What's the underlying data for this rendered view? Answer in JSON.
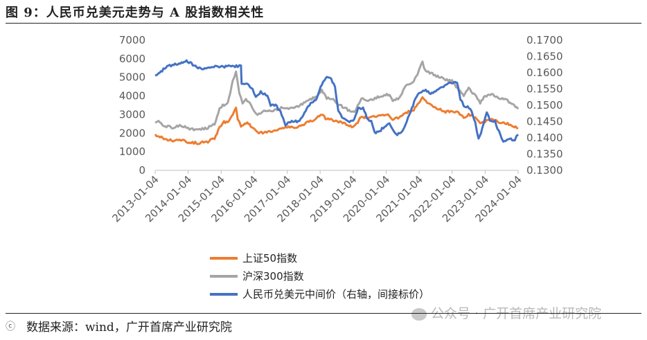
{
  "title": "图 9：人民币兑美元走势与 A 股指数相关性",
  "source": "数据来源：wind，广开首席产业研究院",
  "source_icon": "ⓒ",
  "watermark": "公众号 · 广开首席产业研究院",
  "chart_data": {
    "type": "line",
    "x_tick_labels": [
      "2013-01-04",
      "2014-01-04",
      "2015-01-04",
      "2016-01-04",
      "2017-01-04",
      "2018-01-04",
      "2019-01-04",
      "2020-01-04",
      "2021-01-04",
      "2022-01-04",
      "2023-01-04",
      "2024-01-04"
    ],
    "y_left": {
      "ticks": [
        0,
        1000,
        2000,
        3000,
        4000,
        5000,
        6000,
        7000
      ],
      "range": [
        0,
        7000
      ]
    },
    "y_right": {
      "ticks": [
        "0.1300",
        "0.1350",
        "0.1400",
        "0.1450",
        "0.1500",
        "0.1550",
        "0.1600",
        "0.1650",
        "0.1700"
      ],
      "range": [
        0.13,
        0.17
      ]
    },
    "x_range": [
      2013.0,
      2024.0
    ],
    "series": [
      {
        "name": "上证50指数",
        "axis": "left",
        "color": "#ED7D31",
        "points": [
          [
            2013.0,
            1900
          ],
          [
            2013.15,
            1780
          ],
          [
            2013.3,
            1700
          ],
          [
            2013.5,
            1600
          ],
          [
            2013.7,
            1650
          ],
          [
            2013.9,
            1580
          ],
          [
            2014.0,
            1520
          ],
          [
            2014.3,
            1470
          ],
          [
            2014.6,
            1550
          ],
          [
            2014.8,
            1700
          ],
          [
            2014.95,
            2300
          ],
          [
            2015.05,
            2600
          ],
          [
            2015.2,
            2600
          ],
          [
            2015.35,
            3000
          ],
          [
            2015.45,
            3350
          ],
          [
            2015.5,
            2800
          ],
          [
            2015.6,
            2400
          ],
          [
            2015.75,
            2550
          ],
          [
            2015.9,
            2400
          ],
          [
            2016.0,
            2200
          ],
          [
            2016.1,
            2000
          ],
          [
            2016.3,
            2050
          ],
          [
            2016.5,
            2100
          ],
          [
            2016.7,
            2200
          ],
          [
            2016.9,
            2250
          ],
          [
            2017.0,
            2300
          ],
          [
            2017.3,
            2350
          ],
          [
            2017.5,
            2450
          ],
          [
            2017.7,
            2650
          ],
          [
            2017.9,
            2800
          ],
          [
            2018.05,
            3000
          ],
          [
            2018.2,
            2750
          ],
          [
            2018.4,
            2700
          ],
          [
            2018.6,
            2600
          ],
          [
            2018.8,
            2450
          ],
          [
            2019.0,
            2350
          ],
          [
            2019.1,
            2500
          ],
          [
            2019.25,
            2900
          ],
          [
            2019.5,
            2800
          ],
          [
            2019.7,
            2900
          ],
          [
            2019.9,
            3000
          ],
          [
            2020.1,
            2950
          ],
          [
            2020.2,
            2700
          ],
          [
            2020.4,
            2850
          ],
          [
            2020.6,
            3100
          ],
          [
            2020.8,
            3200
          ],
          [
            2020.95,
            3500
          ],
          [
            2021.1,
            3950
          ],
          [
            2021.2,
            3700
          ],
          [
            2021.4,
            3500
          ],
          [
            2021.6,
            3300
          ],
          [
            2021.8,
            3150
          ],
          [
            2022.0,
            3200
          ],
          [
            2022.2,
            3100
          ],
          [
            2022.35,
            2850
          ],
          [
            2022.5,
            3000
          ],
          [
            2022.7,
            2850
          ],
          [
            2022.85,
            2500
          ],
          [
            2023.0,
            2650
          ],
          [
            2023.2,
            2750
          ],
          [
            2023.4,
            2600
          ],
          [
            2023.6,
            2550
          ],
          [
            2023.8,
            2450
          ],
          [
            2024.0,
            2250
          ]
        ]
      },
      {
        "name": "沪深300指数",
        "axis": "left",
        "color": "#A5A5A5",
        "points": [
          [
            2013.0,
            2500
          ],
          [
            2013.1,
            2600
          ],
          [
            2013.3,
            2400
          ],
          [
            2013.5,
            2300
          ],
          [
            2013.7,
            2400
          ],
          [
            2013.9,
            2350
          ],
          [
            2014.0,
            2250
          ],
          [
            2014.3,
            2150
          ],
          [
            2014.6,
            2300
          ],
          [
            2014.8,
            2500
          ],
          [
            2014.95,
            3300
          ],
          [
            2015.05,
            3500
          ],
          [
            2015.2,
            3600
          ],
          [
            2015.35,
            4800
          ],
          [
            2015.45,
            5300
          ],
          [
            2015.55,
            4200
          ],
          [
            2015.65,
            3600
          ],
          [
            2015.75,
            3800
          ],
          [
            2015.9,
            3600
          ],
          [
            2016.0,
            3200
          ],
          [
            2016.1,
            3000
          ],
          [
            2016.3,
            3200
          ],
          [
            2016.5,
            3200
          ],
          [
            2016.7,
            3300
          ],
          [
            2016.9,
            3400
          ],
          [
            2017.0,
            3350
          ],
          [
            2017.3,
            3400
          ],
          [
            2017.5,
            3600
          ],
          [
            2017.7,
            3800
          ],
          [
            2017.9,
            4000
          ],
          [
            2018.05,
            4300
          ],
          [
            2018.2,
            3900
          ],
          [
            2018.4,
            3800
          ],
          [
            2018.6,
            3500
          ],
          [
            2018.8,
            3300
          ],
          [
            2019.0,
            3100
          ],
          [
            2019.1,
            3300
          ],
          [
            2019.25,
            3900
          ],
          [
            2019.5,
            3750
          ],
          [
            2019.7,
            3900
          ],
          [
            2019.9,
            4000
          ],
          [
            2020.1,
            4100
          ],
          [
            2020.2,
            3700
          ],
          [
            2020.4,
            3900
          ],
          [
            2020.6,
            4600
          ],
          [
            2020.8,
            4700
          ],
          [
            2020.95,
            5200
          ],
          [
            2021.1,
            5800
          ],
          [
            2021.2,
            5300
          ],
          [
            2021.4,
            5200
          ],
          [
            2021.6,
            5000
          ],
          [
            2021.8,
            4900
          ],
          [
            2022.0,
            4800
          ],
          [
            2022.2,
            4300
          ],
          [
            2022.35,
            4000
          ],
          [
            2022.5,
            4400
          ],
          [
            2022.7,
            4000
          ],
          [
            2022.85,
            3600
          ],
          [
            2023.0,
            4000
          ],
          [
            2023.2,
            4100
          ],
          [
            2023.4,
            3900
          ],
          [
            2023.6,
            3850
          ],
          [
            2023.8,
            3600
          ],
          [
            2024.0,
            3300
          ]
        ]
      },
      {
        "name": "人民币兑美元中间价（右轴，间接标价）",
        "axis": "right",
        "color": "#4472C4",
        "points": [
          [
            2013.0,
            0.159
          ],
          [
            2013.1,
            0.1595
          ],
          [
            2013.25,
            0.161
          ],
          [
            2013.4,
            0.162
          ],
          [
            2013.6,
            0.1625
          ],
          [
            2013.8,
            0.163
          ],
          [
            2013.95,
            0.1635
          ],
          [
            2014.1,
            0.1628
          ],
          [
            2014.3,
            0.1615
          ],
          [
            2014.5,
            0.1613
          ],
          [
            2014.7,
            0.1618
          ],
          [
            2014.9,
            0.162
          ],
          [
            2015.1,
            0.1618
          ],
          [
            2015.3,
            0.162
          ],
          [
            2015.5,
            0.162
          ],
          [
            2015.6,
            0.162
          ],
          [
            2015.62,
            0.1568
          ],
          [
            2015.8,
            0.1565
          ],
          [
            2015.95,
            0.155
          ],
          [
            2016.05,
            0.1525
          ],
          [
            2016.2,
            0.154
          ],
          [
            2016.4,
            0.153
          ],
          [
            2016.5,
            0.15
          ],
          [
            2016.65,
            0.15
          ],
          [
            2016.8,
            0.148
          ],
          [
            2016.95,
            0.144
          ],
          [
            2017.1,
            0.145
          ],
          [
            2017.3,
            0.145
          ],
          [
            2017.45,
            0.146
          ],
          [
            2017.6,
            0.149
          ],
          [
            2017.75,
            0.151
          ],
          [
            2017.9,
            0.152
          ],
          [
            2018.05,
            0.1565
          ],
          [
            2018.2,
            0.159
          ],
          [
            2018.3,
            0.1585
          ],
          [
            2018.45,
            0.156
          ],
          [
            2018.55,
            0.148
          ],
          [
            2018.7,
            0.146
          ],
          [
            2018.85,
            0.145
          ],
          [
            2019.0,
            0.145
          ],
          [
            2019.15,
            0.149
          ],
          [
            2019.3,
            0.149
          ],
          [
            2019.45,
            0.1455
          ],
          [
            2019.55,
            0.145
          ],
          [
            2019.65,
            0.1415
          ],
          [
            2019.8,
            0.142
          ],
          [
            2019.95,
            0.1435
          ],
          [
            2020.1,
            0.1445
          ],
          [
            2020.3,
            0.141
          ],
          [
            2020.45,
            0.1415
          ],
          [
            2020.55,
            0.143
          ],
          [
            2020.7,
            0.147
          ],
          [
            2020.85,
            0.151
          ],
          [
            2021.0,
            0.154
          ],
          [
            2021.2,
            0.1545
          ],
          [
            2021.35,
            0.1535
          ],
          [
            2021.5,
            0.1545
          ],
          [
            2021.7,
            0.1555
          ],
          [
            2021.85,
            0.1565
          ],
          [
            2022.0,
            0.157
          ],
          [
            2022.15,
            0.157
          ],
          [
            2022.25,
            0.152
          ],
          [
            2022.35,
            0.15
          ],
          [
            2022.55,
            0.149
          ],
          [
            2022.7,
            0.1445
          ],
          [
            2022.8,
            0.1395
          ],
          [
            2022.95,
            0.144
          ],
          [
            2023.05,
            0.148
          ],
          [
            2023.15,
            0.145
          ],
          [
            2023.3,
            0.145
          ],
          [
            2023.45,
            0.141
          ],
          [
            2023.55,
            0.1385
          ],
          [
            2023.7,
            0.1395
          ],
          [
            2023.9,
            0.1395
          ],
          [
            2024.0,
            0.141
          ]
        ]
      }
    ],
    "legend": {
      "position": "bottom",
      "entries": [
        "上证50指数",
        "沪深300指数",
        "人民币兑美元中间价（右轴，间接标价）"
      ]
    },
    "grid": false
  }
}
